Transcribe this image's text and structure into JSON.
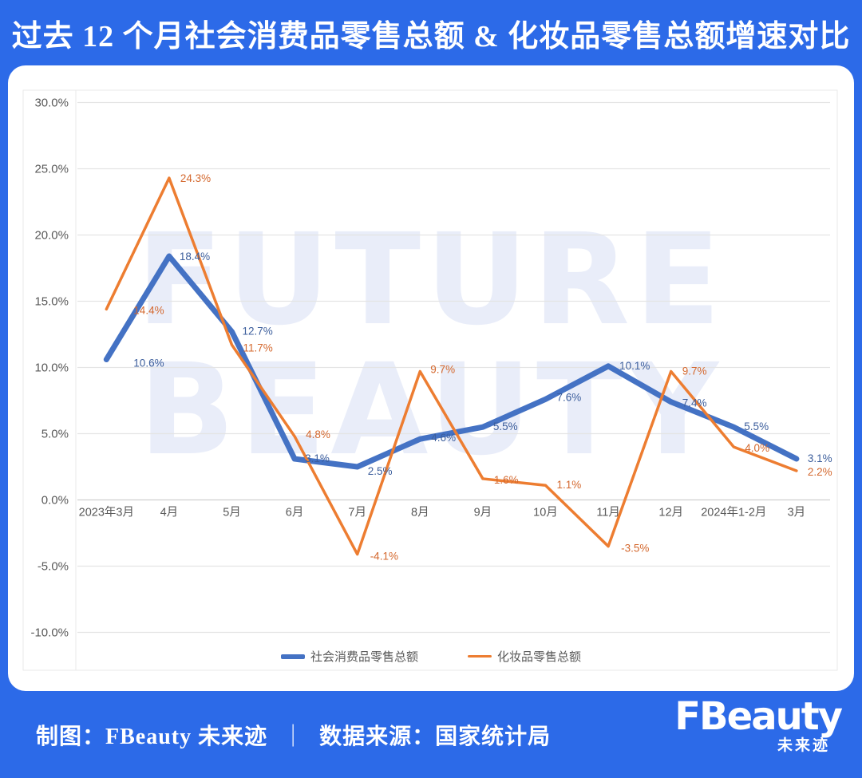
{
  "header": {
    "title": "过去 12 个月社会消费品零售总额 & 化妆品零售总额增速对比"
  },
  "watermark": {
    "line1": "FUTURE",
    "line2": "BEAUTY"
  },
  "colors": {
    "background": "#2C6AE8",
    "card": "#FFFFFF",
    "series_blue": "#4472C4",
    "series_orange": "#ED7D31",
    "label_blue": "#3C5E9C",
    "label_orange": "#D4682E",
    "axis_text": "#595959",
    "gridline": "#E4E4E4",
    "zero_line": "#CFCFCF",
    "frame": "#EAEAEA",
    "watermark": "#E9EDF9"
  },
  "chart_data": {
    "type": "line",
    "title": "过去 12 个月社会消费品零售总额 & 化妆品零售总额增速对比",
    "xlabel": "",
    "ylabel": "",
    "categories": [
      "2023年3月",
      "4月",
      "5月",
      "6月",
      "7月",
      "8月",
      "9月",
      "10月",
      "11月",
      "12月",
      "2024年1-2月",
      "3月"
    ],
    "series": [
      {
        "name": "社会消费品零售总额",
        "values": [
          10.6,
          18.4,
          12.7,
          3.1,
          2.5,
          4.6,
          5.5,
          7.6,
          10.1,
          7.4,
          5.5,
          3.1
        ]
      },
      {
        "name": "化妆品零售总额",
        "values": [
          14.4,
          24.3,
          11.7,
          4.8,
          -4.1,
          9.7,
          1.6,
          1.1,
          -3.5,
          9.7,
          4.0,
          2.2
        ]
      }
    ],
    "ylim": [
      -10,
      30
    ],
    "yticks": [
      {
        "value": 30,
        "label": "30.0%"
      },
      {
        "value": 25,
        "label": "25.0%"
      },
      {
        "value": 20,
        "label": "20.0%"
      },
      {
        "value": 15,
        "label": "15.0%"
      },
      {
        "value": 10,
        "label": "10.0%"
      },
      {
        "value": 5,
        "label": "5.0%"
      },
      {
        "value": 0,
        "label": "0.0%"
      },
      {
        "value": -5,
        "label": "-5.0%"
      },
      {
        "value": -10,
        "label": "-10.0%"
      }
    ],
    "grid": true,
    "data_labels": true,
    "legend_position": "bottom"
  },
  "footer": {
    "credit": "制图：FBeauty 未来迹",
    "separator": "｜",
    "source": "数据来源：国家统计局",
    "logo_text": "FBeauty",
    "logo_subtext": "未来迹"
  }
}
